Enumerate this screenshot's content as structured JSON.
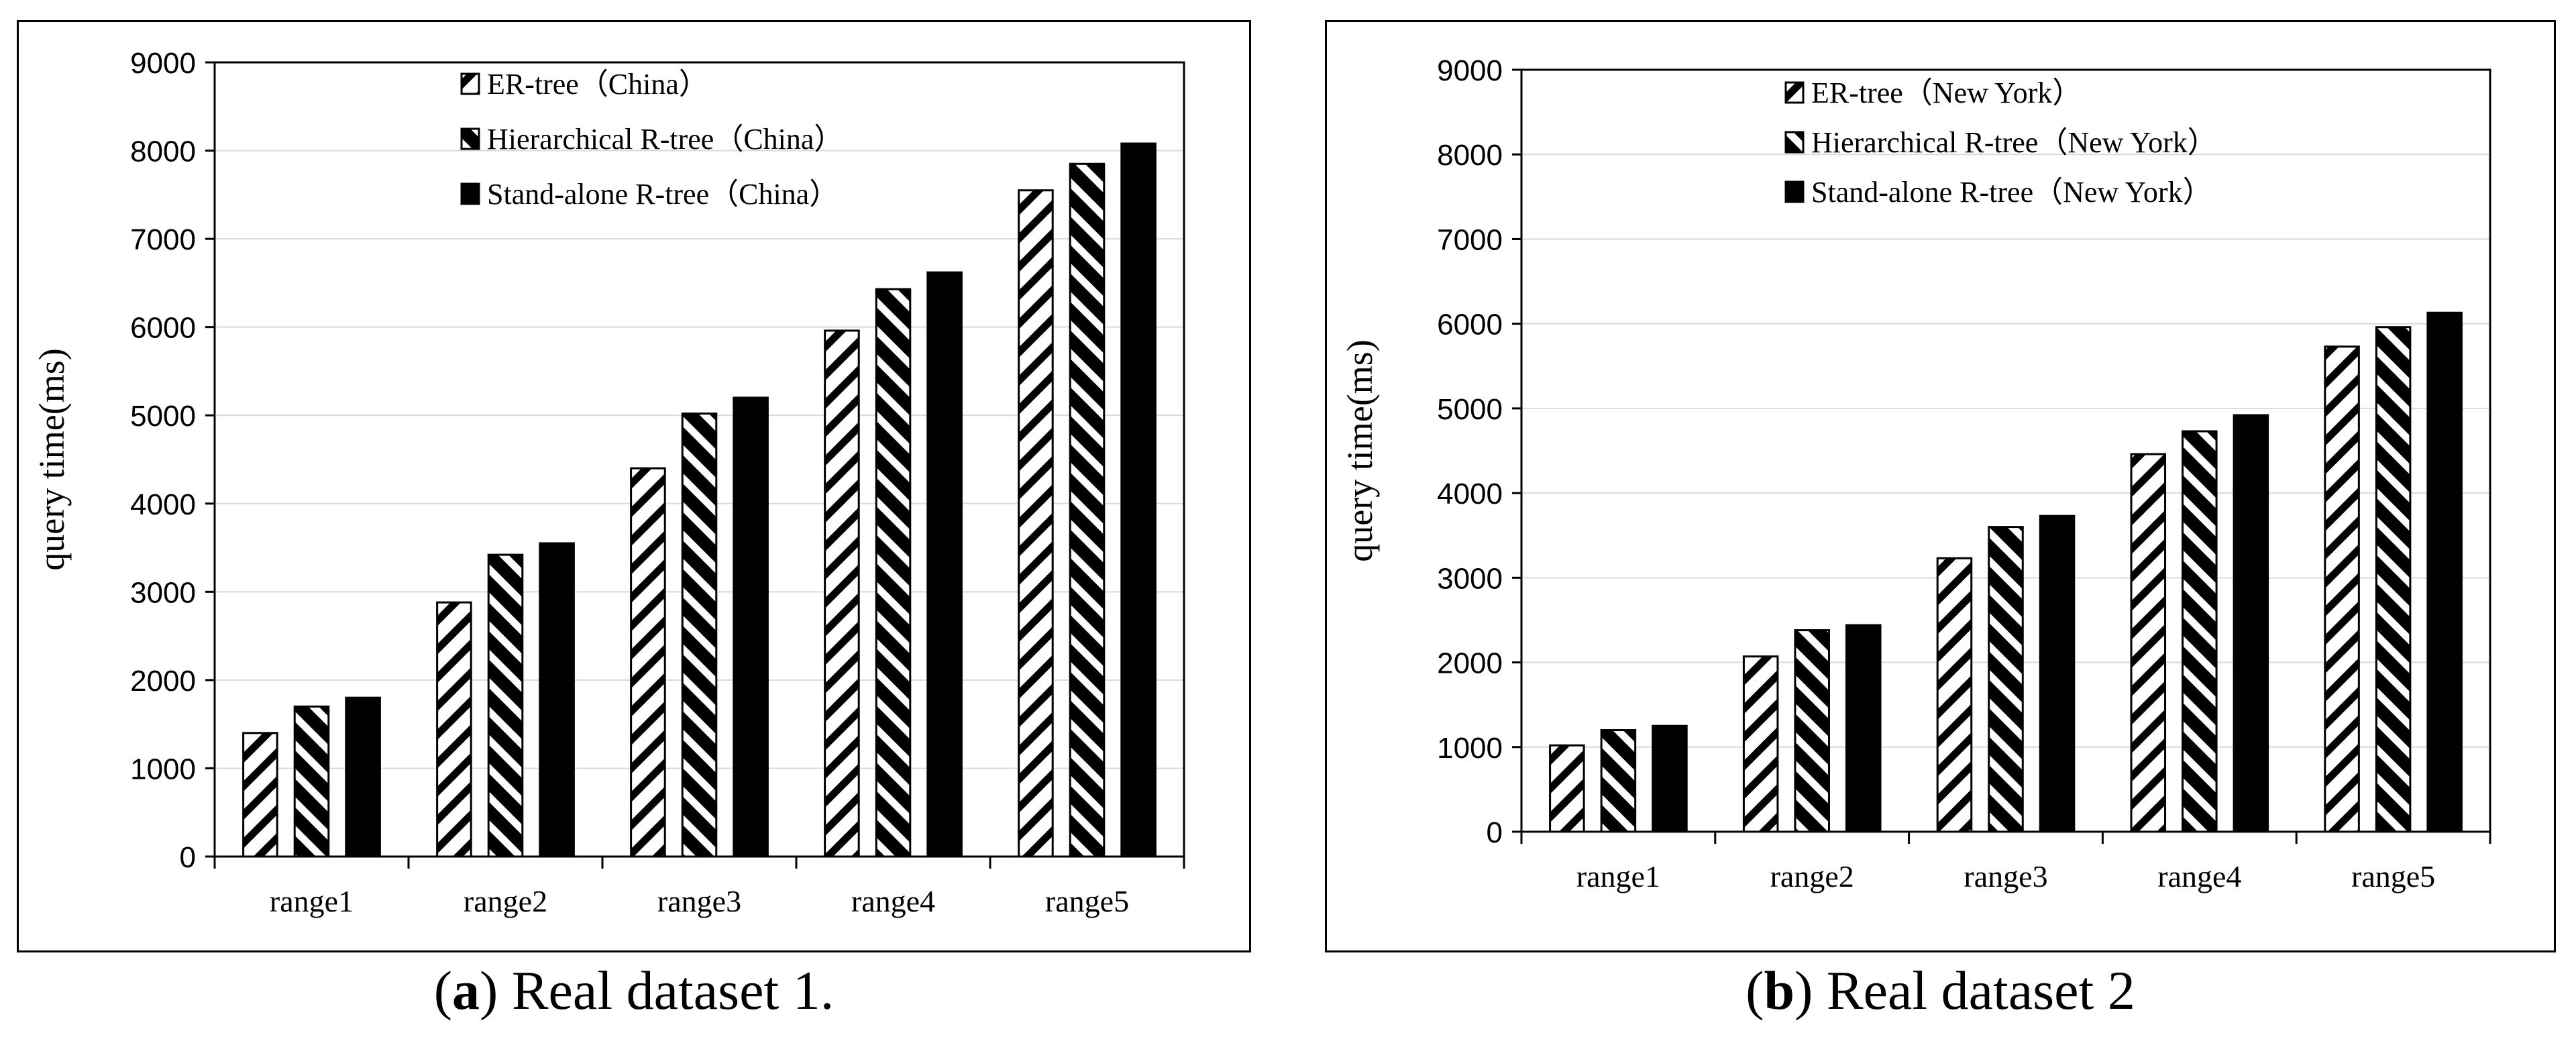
{
  "chart_data": [
    {
      "type": "bar",
      "ylabel": "query time(ms)",
      "xlabel": "",
      "ylim": [
        0,
        9000
      ],
      "yticks": [
        0,
        1000,
        2000,
        3000,
        4000,
        5000,
        6000,
        7000,
        8000,
        9000
      ],
      "grid": true,
      "legend_position": "top-center",
      "categories": [
        "range1",
        "range2",
        "range3",
        "range4",
        "range5"
      ],
      "series": [
        {
          "name": "ER-tree（China）",
          "pattern": "light-diagonal",
          "values": [
            1400,
            2880,
            4400,
            5960,
            7550
          ]
        },
        {
          "name": "Hierarchical R-tree（China）",
          "pattern": "dark-diagonal",
          "values": [
            1700,
            3420,
            5020,
            6430,
            7850
          ]
        },
        {
          "name": "Stand-alone R-tree（China）",
          "pattern": "solid",
          "values": [
            1800,
            3550,
            5200,
            6620,
            8080
          ]
        }
      ]
    },
    {
      "type": "bar",
      "ylabel": "query time(ms)",
      "xlabel": "",
      "ylim": [
        0,
        9000
      ],
      "yticks": [
        0,
        1000,
        2000,
        3000,
        4000,
        5000,
        6000,
        7000,
        8000,
        9000
      ],
      "grid": true,
      "legend_position": "top-center",
      "categories": [
        "range1",
        "range2",
        "range3",
        "range4",
        "range5"
      ],
      "series": [
        {
          "name": "ER-tree（New York）",
          "pattern": "light-diagonal",
          "values": [
            1020,
            2070,
            3230,
            4460,
            5730
          ]
        },
        {
          "name": "Hierarchical R-tree（New York）",
          "pattern": "dark-diagonal",
          "values": [
            1200,
            2380,
            3600,
            4730,
            5960
          ]
        },
        {
          "name": "Stand-alone R-tree（New York）",
          "pattern": "solid",
          "values": [
            1250,
            2440,
            3730,
            4920,
            6130
          ]
        }
      ]
    }
  ],
  "captions": [
    {
      "letter": "a",
      "text": " Real dataset 1."
    },
    {
      "letter": "b",
      "text": " Real dataset 2"
    }
  ],
  "colors": {
    "bar_fill": "#000000",
    "grid": "#d9d9d9",
    "axis": "#000000",
    "background": "#ffffff"
  }
}
